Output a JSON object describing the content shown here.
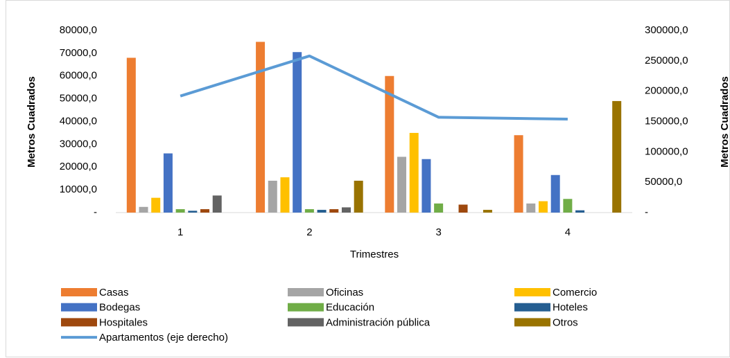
{
  "chart_data": {
    "type": "bar",
    "categories": [
      "1",
      "2",
      "3",
      "4"
    ],
    "xlabel": "Trimestres",
    "ylabel": "Metros Cuadrados",
    "y2label": "Metros Cuadrados",
    "ylim": [
      0,
      80000
    ],
    "yticks": [
      {
        "value": 0,
        "label": "-"
      },
      {
        "value": 10000,
        "label": "10000,0"
      },
      {
        "value": 20000,
        "label": "20000,0"
      },
      {
        "value": 30000,
        "label": "30000,0"
      },
      {
        "value": 40000,
        "label": "40000,0"
      },
      {
        "value": 50000,
        "label": "50000,0"
      },
      {
        "value": 60000,
        "label": "60000,0"
      },
      {
        "value": 70000,
        "label": "70000,0"
      },
      {
        "value": 80000,
        "label": "80000,0"
      }
    ],
    "y2lim": [
      0,
      300000
    ],
    "y2ticks": [
      {
        "value": 0,
        "label": "-"
      },
      {
        "value": 50000,
        "label": "50000,0"
      },
      {
        "value": 100000,
        "label": "100000,0"
      },
      {
        "value": 150000,
        "label": "150000,0"
      },
      {
        "value": 200000,
        "label": "200000,0"
      },
      {
        "value": 250000,
        "label": "250000,0"
      },
      {
        "value": 300000,
        "label": "300000,0"
      }
    ],
    "legend": "bottom",
    "series": [
      {
        "name": "Casas",
        "color": "#ED7D31",
        "values": [
          68000,
          75000,
          60000,
          34000
        ]
      },
      {
        "name": "Oficinas",
        "color": "#A5A5A5",
        "values": [
          2500,
          14000,
          24500,
          4000
        ]
      },
      {
        "name": "Comercio",
        "color": "#FFC000",
        "values": [
          6500,
          15500,
          35000,
          5000
        ]
      },
      {
        "name": "Bodegas",
        "color": "#4472C4",
        "values": [
          26000,
          70500,
          23500,
          16500
        ]
      },
      {
        "name": "Educación",
        "color": "#70AD47",
        "values": [
          1500,
          1500,
          4000,
          6000
        ]
      },
      {
        "name": "Hoteles",
        "color": "#255E91",
        "values": [
          800,
          1200,
          0,
          1000
        ]
      },
      {
        "name": "Hospitales",
        "color": "#9E480E",
        "values": [
          1500,
          1500,
          3500,
          0
        ]
      },
      {
        "name": "Administración pública",
        "color": "#636363",
        "values": [
          7500,
          2300,
          0,
          0
        ]
      },
      {
        "name": "Otros",
        "color": "#997300",
        "values": [
          0,
          14000,
          1200,
          49000
        ]
      },
      {
        "name": "Apartamentos (eje derecho)",
        "color": "#5B9BD5",
        "type": "line",
        "axis": "y2",
        "values": [
          192000,
          258000,
          157000,
          154000
        ]
      }
    ]
  }
}
